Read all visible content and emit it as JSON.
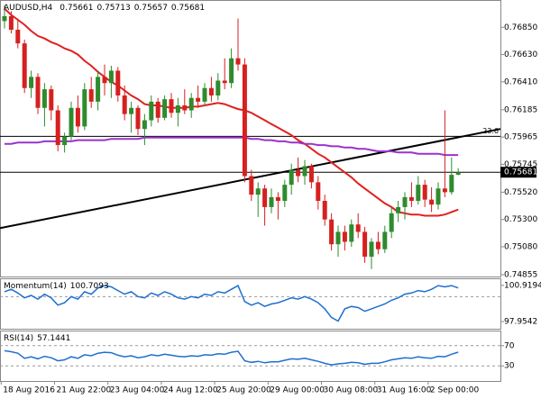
{
  "chart_data": {
    "type": "candlestick",
    "symbol": "AUDUSD,H4",
    "categories": [
      "18 Aug 2016",
      null,
      null,
      null,
      null,
      null,
      null,
      null,
      "21 Aug 22:00",
      null,
      null,
      null,
      null,
      null,
      null,
      null,
      "23 Aug 04:00",
      null,
      null,
      null,
      null,
      null,
      null,
      null,
      "24 Aug 12:00",
      null,
      null,
      null,
      null,
      null,
      null,
      null,
      "25 Aug 20:00",
      null,
      null,
      null,
      null,
      null,
      null,
      null,
      "29 Aug 00:00",
      null,
      null,
      null,
      null,
      null,
      null,
      null,
      "30 Aug 08:00",
      null,
      null,
      null,
      null,
      null,
      null,
      null,
      "31 Aug 16:00",
      null,
      null,
      null,
      null,
      null,
      null,
      null,
      "2 Sep 00:00",
      null,
      null,
      null,
      null
    ],
    "open": [
      0.769,
      0.7694,
      0.7683,
      0.7672,
      0.7636,
      0.7645,
      0.762,
      0.7635,
      0.7618,
      0.759,
      0.7597,
      0.762,
      0.7605,
      0.7635,
      0.7625,
      0.7645,
      0.764,
      0.765,
      0.763,
      0.7615,
      0.762,
      0.7603,
      0.761,
      0.7625,
      0.7612,
      0.7627,
      0.7616,
      0.7622,
      0.7618,
      0.7628,
      0.7625,
      0.7636,
      0.763,
      0.7642,
      0.764,
      0.766,
      0.7655,
      0.7565,
      0.755,
      0.7555,
      0.754,
      0.7548,
      0.7545,
      0.7558,
      0.757,
      0.7565,
      0.7573,
      0.756,
      0.7545,
      0.753,
      0.751,
      0.752,
      0.7512,
      0.7526,
      0.752,
      0.75,
      0.7512,
      0.7506,
      0.752,
      0.7535,
      0.754,
      0.7548,
      0.7545,
      0.7558,
      0.7546,
      0.7542,
      0.7555,
      0.7552,
      0.75661
    ],
    "high": [
      0.7703,
      0.7698,
      0.7692,
      0.7675,
      0.765,
      0.7648,
      0.764,
      0.7638,
      0.7622,
      0.76,
      0.7625,
      0.763,
      0.764,
      0.7645,
      0.765,
      0.7655,
      0.7654,
      0.7653,
      0.7638,
      0.7625,
      0.7622,
      0.7615,
      0.763,
      0.7628,
      0.763,
      0.7632,
      0.7628,
      0.7635,
      0.7632,
      0.7638,
      0.764,
      0.7645,
      0.7648,
      0.766,
      0.7668,
      0.7692,
      0.766,
      0.757,
      0.756,
      0.7558,
      0.7555,
      0.7552,
      0.7562,
      0.7575,
      0.758,
      0.7578,
      0.7575,
      0.7565,
      0.755,
      0.7535,
      0.7525,
      0.7525,
      0.753,
      0.7535,
      0.7524,
      0.7515,
      0.752,
      0.7525,
      0.754,
      0.7545,
      0.7552,
      0.756,
      0.7565,
      0.7562,
      0.7556,
      0.756,
      0.7618,
      0.758,
      0.75713
    ],
    "low": [
      0.7684,
      0.768,
      0.7668,
      0.7632,
      0.7628,
      0.7615,
      0.7605,
      0.761,
      0.7585,
      0.7584,
      0.7594,
      0.76,
      0.7602,
      0.762,
      0.7618,
      0.763,
      0.7628,
      0.7625,
      0.761,
      0.76,
      0.7598,
      0.759,
      0.7605,
      0.7608,
      0.761,
      0.7612,
      0.7605,
      0.7615,
      0.7612,
      0.762,
      0.7622,
      0.7625,
      0.7626,
      0.7635,
      0.7636,
      0.765,
      0.756,
      0.7545,
      0.7532,
      0.7525,
      0.7535,
      0.753,
      0.754,
      0.755,
      0.756,
      0.7558,
      0.7555,
      0.7538,
      0.7525,
      0.7505,
      0.75,
      0.7505,
      0.7508,
      0.7515,
      0.7495,
      0.749,
      0.7502,
      0.7503,
      0.7515,
      0.7528,
      0.753,
      0.754,
      0.7542,
      0.754,
      0.7536,
      0.7538,
      0.7548,
      0.755,
      0.75657
    ],
    "close": [
      0.7694,
      0.7683,
      0.7672,
      0.7636,
      0.7645,
      0.762,
      0.7635,
      0.7618,
      0.759,
      0.7597,
      0.762,
      0.7605,
      0.7635,
      0.7625,
      0.7645,
      0.764,
      0.765,
      0.763,
      0.7615,
      0.762,
      0.7603,
      0.761,
      0.7625,
      0.7612,
      0.7627,
      0.7616,
      0.7622,
      0.7618,
      0.7628,
      0.7625,
      0.7636,
      0.763,
      0.7642,
      0.764,
      0.766,
      0.7655,
      0.7565,
      0.755,
      0.7555,
      0.754,
      0.7548,
      0.7545,
      0.7558,
      0.757,
      0.7565,
      0.7573,
      0.756,
      0.7545,
      0.753,
      0.751,
      0.752,
      0.7512,
      0.7526,
      0.752,
      0.75,
      0.7512,
      0.7506,
      0.752,
      0.7535,
      0.754,
      0.7548,
      0.7545,
      0.7558,
      0.7546,
      0.7542,
      0.7555,
      0.7552,
      0.7566,
      0.75681
    ],
    "up_color": "#2e8b2e",
    "down_color": "#d62020",
    "ylim": [
      0.7484,
      0.7707
    ],
    "yticks": [
      {
        "value": 0.7685,
        "label": "0.76850"
      },
      {
        "value": 0.7663,
        "label": "0.76630"
      },
      {
        "value": 0.7641,
        "label": "0.76410"
      },
      {
        "value": 0.76185,
        "label": "0.76185"
      },
      {
        "value": 0.75965,
        "label": "0.75965"
      },
      {
        "value": 0.75745,
        "label": "0.75745"
      },
      {
        "value": 0.7552,
        "label": "0.75520"
      },
      {
        "value": 0.753,
        "label": "0.75300"
      },
      {
        "value": 0.7508,
        "label": "0.75080"
      },
      {
        "value": 0.74855,
        "label": "0.74855"
      }
    ],
    "lines": [
      {
        "color": "#e02020",
        "values": [
          0.77,
          0.7695,
          0.7691,
          0.7687,
          0.7682,
          0.7678,
          0.7676,
          0.7673,
          0.7671,
          0.7668,
          0.7666,
          0.7663,
          0.7658,
          0.7654,
          0.7649,
          0.7645,
          0.7641,
          0.7638,
          0.7634,
          0.763,
          0.7627,
          0.7623,
          0.7622,
          0.7622,
          0.7621,
          0.762,
          0.762,
          0.762,
          0.7621,
          0.7621,
          0.7622,
          0.7623,
          0.7624,
          0.7623,
          0.7621,
          0.7619,
          0.7618,
          0.7616,
          0.7613,
          0.761,
          0.7607,
          0.7604,
          0.7601,
          0.7598,
          0.7594,
          0.7591,
          0.7587,
          0.7583,
          0.758,
          0.7576,
          0.7572,
          0.7568,
          0.7564,
          0.7559,
          0.7555,
          0.7551,
          0.7547,
          0.7543,
          0.754,
          0.7536,
          0.7535,
          0.7534,
          0.7534,
          0.7533,
          0.7533,
          0.7533,
          0.7534,
          0.7536,
          0.7538
        ]
      },
      {
        "color": "#9a33cc",
        "values": [
          0.7591,
          0.7591,
          0.7592,
          0.7592,
          0.7592,
          0.7592,
          0.7593,
          0.7593,
          0.7593,
          0.7593,
          0.7593,
          0.7594,
          0.7594,
          0.7594,
          0.7594,
          0.7594,
          0.7595,
          0.7595,
          0.7595,
          0.7595,
          0.7595,
          0.7596,
          0.7596,
          0.7596,
          0.7596,
          0.7596,
          0.7596,
          0.7596,
          0.7596,
          0.7596,
          0.7596,
          0.7596,
          0.7596,
          0.7596,
          0.7596,
          0.7596,
          0.7596,
          0.7595,
          0.7595,
          0.7594,
          0.7594,
          0.7593,
          0.7593,
          0.7592,
          0.7592,
          0.7591,
          0.7591,
          0.759,
          0.759,
          0.7589,
          0.7589,
          0.7588,
          0.7588,
          0.7587,
          0.7587,
          0.7586,
          0.7585,
          0.7585,
          0.7585,
          0.7584,
          0.7584,
          0.7584,
          0.7583,
          0.7583,
          0.7583,
          0.7583,
          0.7582,
          0.7582,
          0.7582
        ]
      }
    ],
    "trendline": {
      "color": "#000000",
      "values": [
        0.7523,
        0.7603
      ]
    },
    "level": {
      "label": "23.6",
      "value": 0.7597
    },
    "indicators": [
      {
        "type": "line",
        "name": "Momentum(14)",
        "color": "#1e6fd0",
        "ylim": [
          97.37,
          101.5
        ],
        "yticks": [
          100.9194,
          97.9542
        ],
        "level": 100,
        "values": [
          100.4,
          100.6,
          100.3,
          99.9,
          100.1,
          99.8,
          100.2,
          99.9,
          99.3,
          99.5,
          100,
          99.8,
          100.4,
          100.2,
          100.7,
          100.9,
          100.8,
          100.5,
          100.2,
          100.4,
          100,
          99.9,
          100.3,
          100.1,
          100.4,
          100.2,
          99.9,
          99.8,
          100,
          99.9,
          100.2,
          100.1,
          100.4,
          100.3,
          100.6,
          100.9,
          99.6,
          99.3,
          99.5,
          99.2,
          99.4,
          99.5,
          99.7,
          99.9,
          99.8,
          100,
          99.8,
          99.5,
          99,
          98.3,
          98,
          99,
          99.2,
          99.1,
          98.8,
          99,
          99.2,
          99.4,
          99.7,
          99.9,
          100.2,
          100.3,
          100.5,
          100.4,
          100.6,
          100.9,
          100.8,
          100.9,
          100.7093
        ]
      },
      {
        "type": "line",
        "name": "RSI(14)",
        "color": "#1e6fd0",
        "ylim": [
          0,
          100
        ],
        "yticks": [
          70,
          30
        ],
        "grid": true,
        "values": [
          60,
          58,
          55,
          45,
          48,
          44,
          49,
          46,
          40,
          42,
          48,
          45,
          52,
          50,
          55,
          57,
          56,
          51,
          48,
          50,
          46,
          48,
          52,
          50,
          53,
          51,
          49,
          48,
          50,
          49,
          52,
          51,
          54,
          53,
          57,
          59,
          40,
          37,
          39,
          36,
          38,
          38,
          41,
          44,
          43,
          45,
          42,
          39,
          35,
          32,
          34,
          35,
          37,
          36,
          33,
          35,
          35,
          38,
          42,
          44,
          46,
          45,
          48,
          46,
          45,
          49,
          48,
          53,
          57.1441
        ]
      }
    ]
  }
}
